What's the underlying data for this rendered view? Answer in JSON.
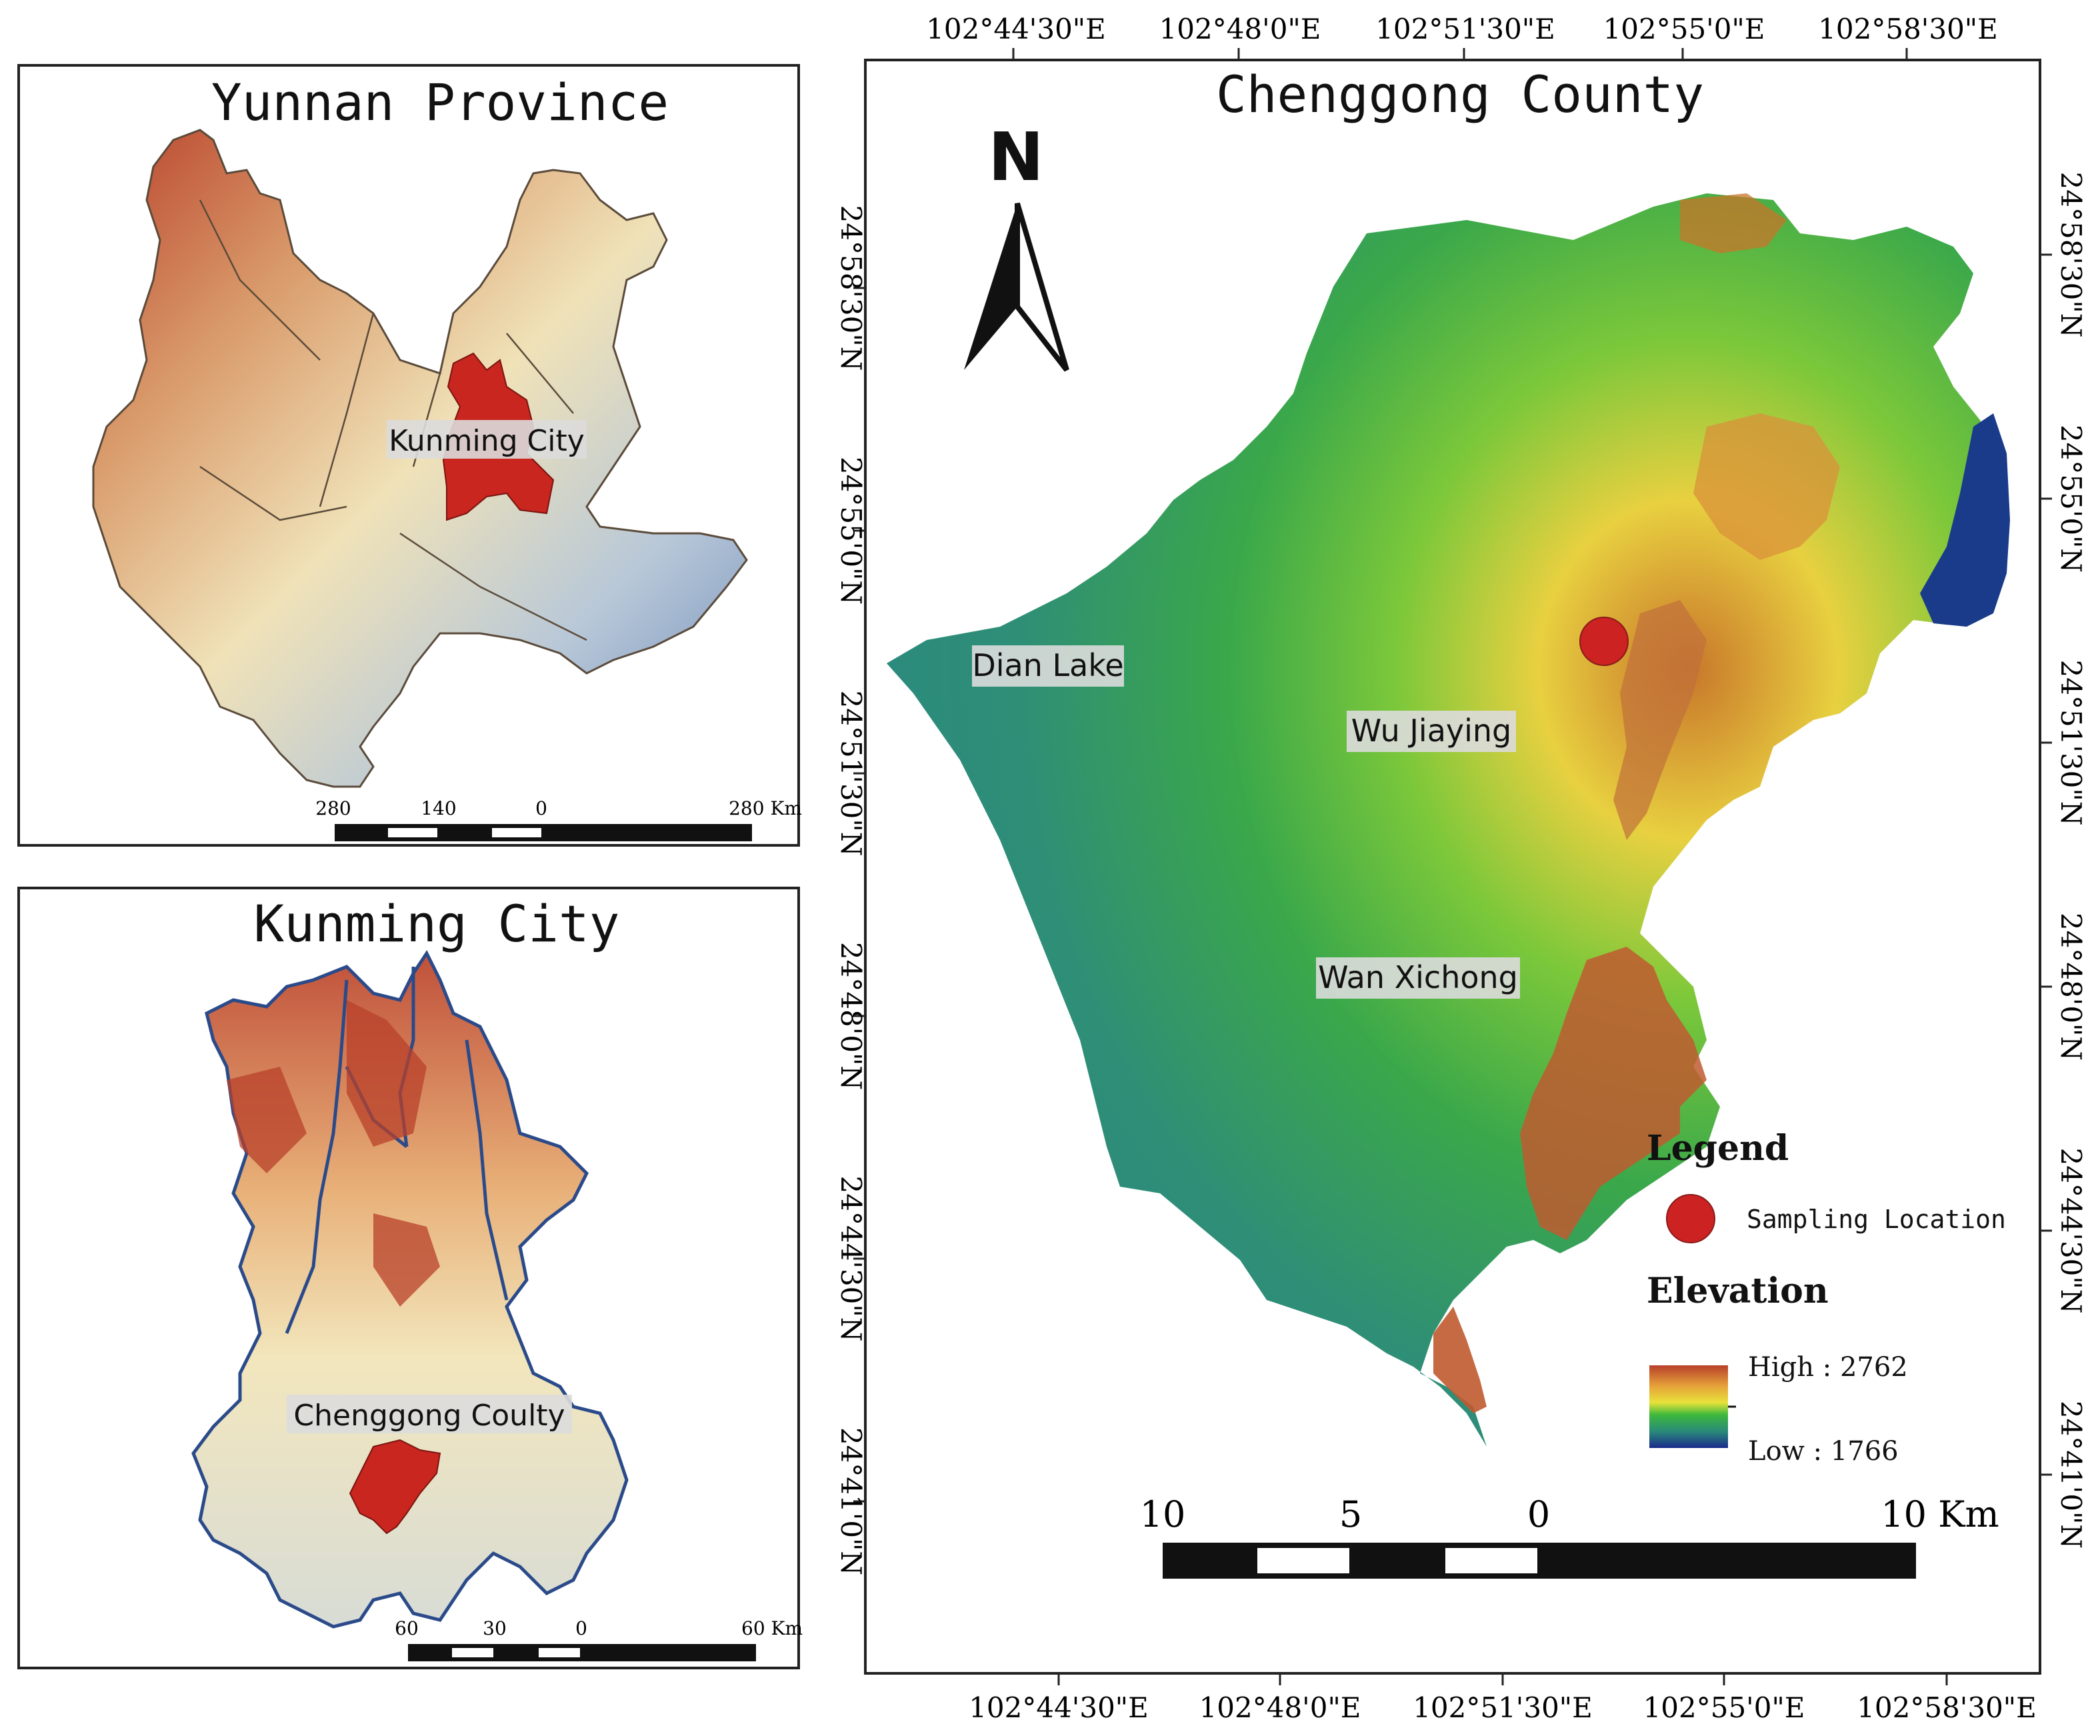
{
  "inset_yunnan": {
    "title": "Yunnan Province",
    "highlight_label": "Kunming City",
    "scale_labels": [
      "280",
      "140",
      "0",
      "280 Km"
    ]
  },
  "inset_kunming": {
    "title": "Kunming City",
    "highlight_label": "Chenggong Coulty",
    "scale_labels": [
      "60",
      "30",
      "0",
      "60 Km"
    ]
  },
  "main_map": {
    "title": "Chenggong County",
    "north_label": "N",
    "place_labels": {
      "dian_lake": "Dian Lake",
      "wu_jiaying": "Wu Jiaying",
      "wan_xichong": "Wan Xichong"
    },
    "lon_ticks": [
      "102°44'30\"E",
      "102°48'0\"E",
      "102°51'30\"E",
      "102°55'0\"E",
      "102°58'30\"E"
    ],
    "lat_ticks": [
      "24°58'30\"N",
      "24°55'0\"N",
      "24°51'30\"N",
      "24°48'0\"N",
      "24°44'30\"N",
      "24°41'0\"N"
    ],
    "scale_labels": [
      "10",
      "5",
      "0",
      "10 Km"
    ]
  },
  "legend": {
    "title": "Legend",
    "sampling_label": "Sampling Location",
    "elevation_title": "Elevation",
    "high_label": "High : 2762",
    "low_label": "Low : 1766"
  },
  "colors": {
    "highlight": "#c8261e",
    "sampling_point": "#cc2222",
    "dem_low": "#1a3a8a",
    "dem_mid": "#3cb83c",
    "dem_high": "#b8402a"
  }
}
